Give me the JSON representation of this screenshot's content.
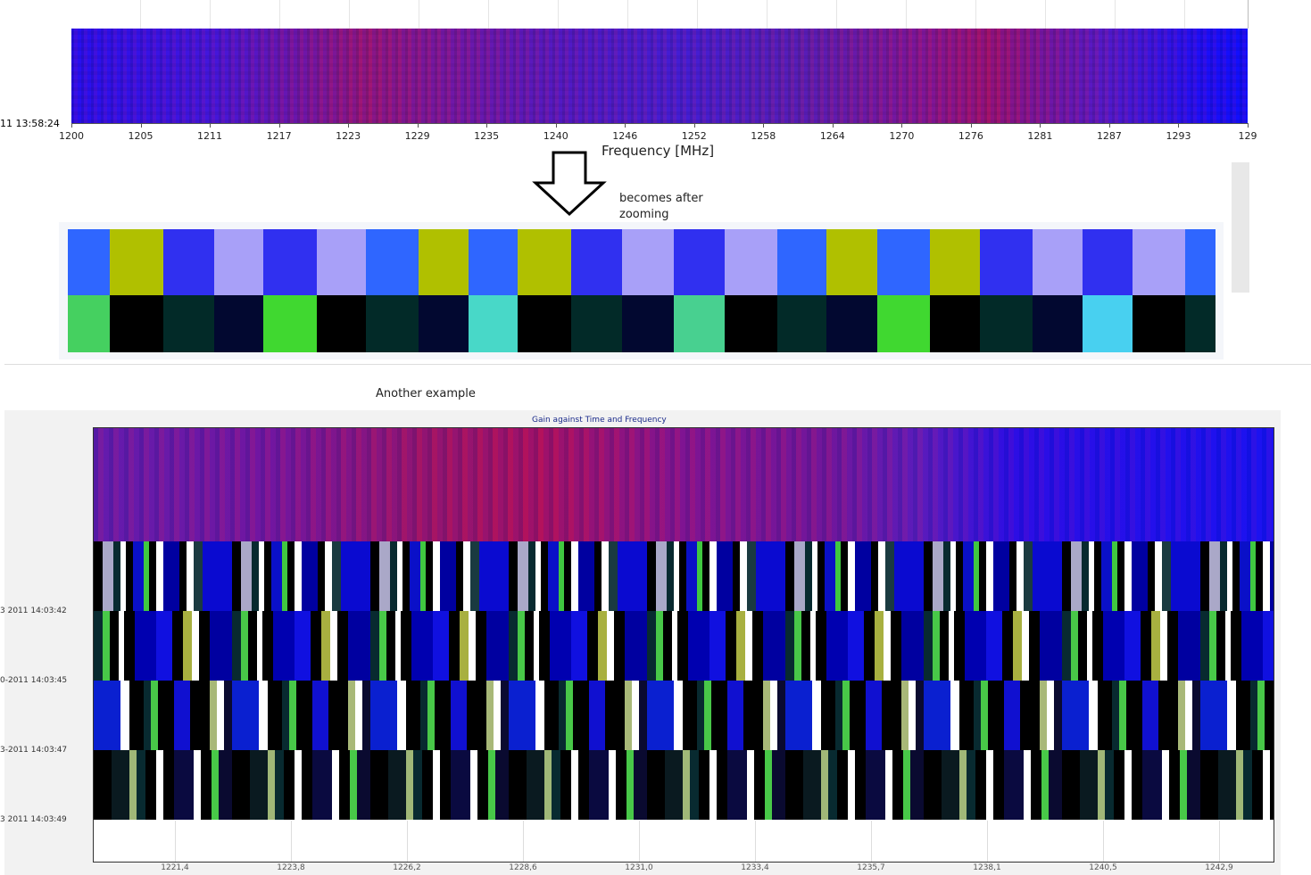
{
  "top_chart": {
    "time_label": "11 13:58:24",
    "xticks": [
      "1200",
      "1205",
      "1211",
      "1217",
      "1223",
      "1229",
      "1235",
      "1240",
      "1246",
      "1252",
      "1258",
      "1264",
      "1270",
      "1276",
      "1281",
      "1287",
      "1293",
      "129"
    ],
    "xlabel": "Frequency [MHz]"
  },
  "annotation": "becomes after zooming",
  "caption": "Another example",
  "bottom_chart": {
    "title": "Gain against Time and Frequency",
    "time_labels": [
      "3 2011 14:03:42",
      "0-2011 14:03:45",
      "3-2011 14:03:47",
      "3 2011 14:03:49"
    ],
    "xticks": [
      "1221,4",
      "1223,8",
      "1226,2",
      "1228,6",
      "1231,0",
      "1233,4",
      "1235,7",
      "1238,1",
      "1240,5",
      "1242,9"
    ]
  }
}
